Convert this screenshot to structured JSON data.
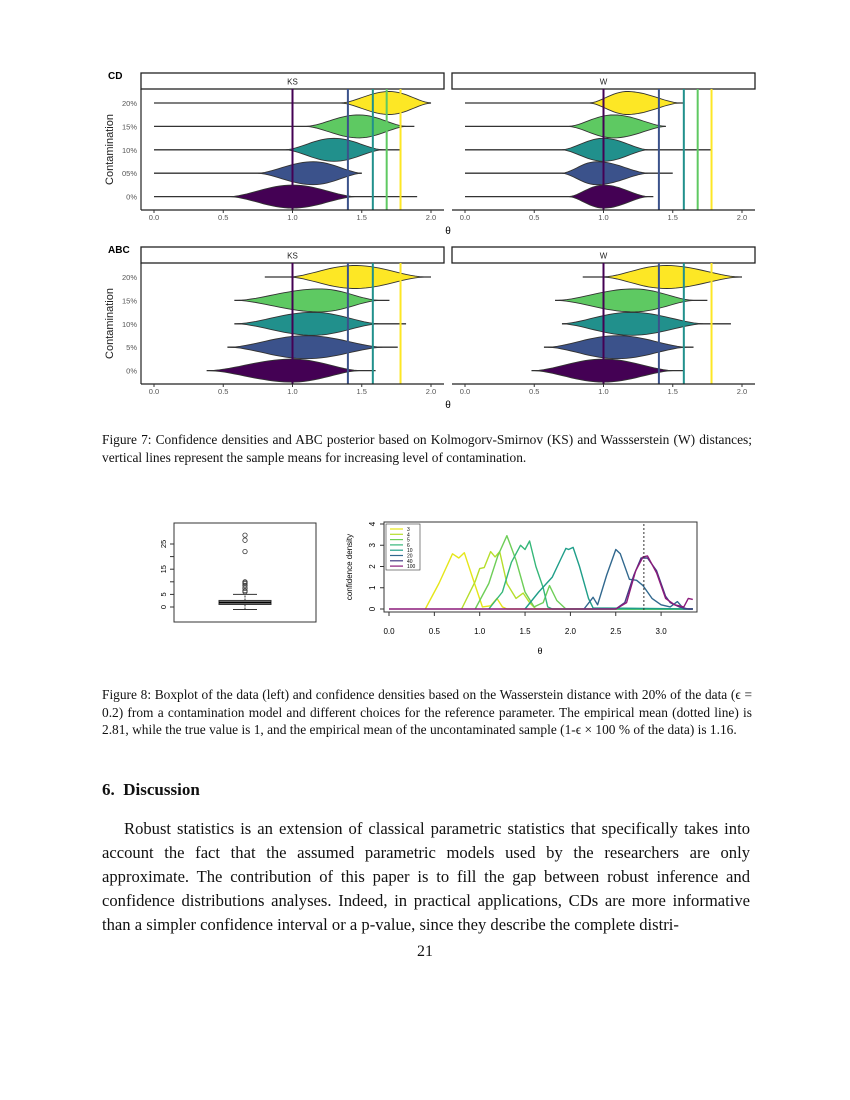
{
  "figure7": {
    "caption": "Figure 7: Confidence densities and ABC posterior based on Kolmogorv-Smirnov (KS) and Wassserstein (W) distances; vertical lines represent the sample means for increasing level of contamination."
  },
  "figure8": {
    "caption": "Figure 8: Boxplot of the data (left) and confidence densities based on the Wasserstein distance with 20% of the data (ϵ = 0.2) from a contamination model and different choices for the reference parameter. The empirical mean (dotted line) is 2.81, while the true value is 1, and the empirical mean of the uncontaminated sample (1-ϵ  × 100 % of the data) is 1.16."
  },
  "section": {
    "number": "6.",
    "title": "Discussion"
  },
  "body": "Robust statistics is an extension of classical parametric statistics that specifically takes into account the fact that the assumed parametric models used by the researchers are only approximate. The contribution of this paper is to fill the gap between robust inference and confidence distributions analyses. Indeed, in practical applications, CDs are more informative than a simpler confidence interval or a p-value, since they describe the complete distri-",
  "page_number": "21",
  "chart_data": [
    {
      "type": "violin",
      "xlabel": "θ",
      "ylabel": "Contamination",
      "xlim": [
        0,
        2.0
      ],
      "xticks": [
        "0.0",
        "0.5",
        "1.0",
        "1.5",
        "2.0"
      ],
      "colors": {
        "0%": "#440154",
        "5%": "#3b528b",
        "10%": "#21908c",
        "15%": "#5ec962",
        "20%": "#fde725"
      },
      "rows": [
        {
          "label": "CD",
          "categories": [
            "20%",
            "15%",
            "10%",
            "05%",
            "0%"
          ],
          "panels": [
            {
              "strip": "KS",
              "vlines": [
                1.0,
                1.4,
                1.58,
                1.68,
                1.78
              ],
              "violins": [
                {
                  "range": [
                    0,
                    2.0
                  ],
                  "body": [
                    1.35,
                    1.7,
                    2.0
                  ]
                },
                {
                  "range": [
                    0,
                    1.88
                  ],
                  "body": [
                    1.1,
                    1.48,
                    1.82
                  ]
                },
                {
                  "range": [
                    0,
                    1.78
                  ],
                  "body": [
                    0.95,
                    1.3,
                    1.65
                  ]
                },
                {
                  "range": [
                    0,
                    1.5
                  ],
                  "body": [
                    0.75,
                    1.15,
                    1.5
                  ]
                },
                {
                  "range": [
                    0,
                    1.9
                  ],
                  "body": [
                    0.55,
                    1.0,
                    1.45
                  ]
                }
              ]
            },
            {
              "strip": "W",
              "vlines": [
                1.0,
                1.4,
                1.58,
                1.68,
                1.78
              ],
              "violins": [
                {
                  "range": [
                    0,
                    1.58
                  ],
                  "body": [
                    0.9,
                    1.17,
                    1.55
                  ]
                },
                {
                  "range": [
                    0,
                    1.45
                  ],
                  "body": [
                    0.75,
                    1.07,
                    1.45
                  ]
                },
                {
                  "range": [
                    0,
                    1.78
                  ],
                  "body": [
                    0.7,
                    1.0,
                    1.32
                  ]
                },
                {
                  "range": [
                    0,
                    1.5
                  ],
                  "body": [
                    0.7,
                    0.95,
                    1.32
                  ]
                },
                {
                  "range": [
                    0,
                    1.36
                  ],
                  "body": [
                    0.75,
                    1.0,
                    1.32
                  ]
                }
              ]
            }
          ]
        },
        {
          "label": "ABC",
          "categories": [
            "20%",
            "15%",
            "10%",
            "5%",
            "0%"
          ],
          "panels": [
            {
              "strip": "KS",
              "vlines": [
                1.0,
                1.4,
                1.58,
                1.78
              ],
              "violins": [
                {
                  "range": [
                    0.8,
                    2.0
                  ],
                  "body": [
                    0.98,
                    1.45,
                    1.95
                  ]
                },
                {
                  "range": [
                    0.58,
                    1.7
                  ],
                  "body": [
                    0.6,
                    1.2,
                    1.62
                  ]
                },
                {
                  "range": [
                    0.58,
                    1.82
                  ],
                  "body": [
                    0.6,
                    1.15,
                    1.62
                  ]
                },
                {
                  "range": [
                    0.53,
                    1.76
                  ],
                  "body": [
                    0.55,
                    1.1,
                    1.65
                  ]
                },
                {
                  "range": [
                    0.38,
                    1.6
                  ],
                  "body": [
                    0.4,
                    1.0,
                    1.48
                  ]
                }
              ]
            },
            {
              "strip": "W",
              "vlines": [
                1.0,
                1.4,
                1.58,
                1.78
              ],
              "violins": [
                {
                  "range": [
                    0.85,
                    2.0
                  ],
                  "body": [
                    1.0,
                    1.45,
                    1.98
                  ]
                },
                {
                  "range": [
                    0.65,
                    1.75
                  ],
                  "body": [
                    0.67,
                    1.22,
                    1.65
                  ]
                },
                {
                  "range": [
                    0.7,
                    1.92
                  ],
                  "body": [
                    0.7,
                    1.2,
                    1.72
                  ]
                },
                {
                  "range": [
                    0.57,
                    1.65
                  ],
                  "body": [
                    0.6,
                    1.1,
                    1.6
                  ]
                },
                {
                  "range": [
                    0.48,
                    1.58
                  ],
                  "body": [
                    0.5,
                    1.0,
                    1.5
                  ]
                }
              ]
            }
          ]
        }
      ]
    },
    {
      "type": "boxplot",
      "yticks": [
        "0",
        "5",
        "15",
        "25"
      ],
      "box": {
        "q1": 1.0,
        "median": 1.8,
        "q3": 2.6,
        "whisker_low": -1.0,
        "whisker_high": 5.0
      },
      "outliers": [
        28.5,
        26.5,
        22,
        10,
        9.6,
        9.2,
        8.5,
        7.5,
        6.5,
        6
      ]
    },
    {
      "type": "line",
      "xlabel": "θ",
      "ylabel": "confidence density",
      "xlim": [
        0,
        3.35
      ],
      "ylim": [
        0,
        4
      ],
      "xticks": [
        "0.0",
        "0.5",
        "1.0",
        "1.5",
        "2.0",
        "2.5",
        "3.0"
      ],
      "yticks": [
        "0",
        "1",
        "2",
        "3",
        "4"
      ],
      "legend": "top-left",
      "reference_line": 2.81,
      "series": [
        {
          "name": "3",
          "color": "#e5e619",
          "points": [
            [
              0.4,
              0
            ],
            [
              0.55,
              1.2
            ],
            [
              0.7,
              2.6
            ],
            [
              0.77,
              2.4
            ],
            [
              0.83,
              2.65
            ],
            [
              0.92,
              1.5
            ],
            [
              1.03,
              0.1
            ],
            [
              1.12,
              0.15
            ],
            [
              1.19,
              0.5
            ],
            [
              1.25,
              0.1
            ],
            [
              1.3,
              0
            ],
            [
              3.35,
              0
            ]
          ]
        },
        {
          "name": "4",
          "color": "#b5de2b",
          "points": [
            [
              0.8,
              0
            ],
            [
              0.95,
              1.3
            ],
            [
              1.0,
              1.9
            ],
            [
              1.05,
              1.95
            ],
            [
              1.12,
              2.7
            ],
            [
              1.17,
              2.45
            ],
            [
              1.22,
              2.7
            ],
            [
              1.3,
              1.2
            ],
            [
              1.4,
              0.5
            ],
            [
              1.48,
              0.75
            ],
            [
              1.55,
              0.3
            ],
            [
              1.62,
              0
            ],
            [
              3.35,
              0
            ]
          ]
        },
        {
          "name": "5",
          "color": "#6ece58",
          "points": [
            [
              0.95,
              0
            ],
            [
              1.1,
              1.2
            ],
            [
              1.2,
              2.5
            ],
            [
              1.3,
              3.45
            ],
            [
              1.4,
              2.3
            ],
            [
              1.5,
              0.8
            ],
            [
              1.6,
              0.1
            ],
            [
              1.7,
              0.3
            ],
            [
              1.77,
              1.1
            ],
            [
              1.85,
              0.4
            ],
            [
              1.95,
              0
            ],
            [
              3.35,
              0
            ]
          ]
        },
        {
          "name": "6",
          "color": "#35b779",
          "points": [
            [
              1.1,
              0
            ],
            [
              1.25,
              0.8
            ],
            [
              1.35,
              2.2
            ],
            [
              1.45,
              3.0
            ],
            [
              1.5,
              2.8
            ],
            [
              1.55,
              3.2
            ],
            [
              1.62,
              2.0
            ],
            [
              1.7,
              1.0
            ],
            [
              1.75,
              0.1
            ],
            [
              1.8,
              0
            ],
            [
              3.35,
              0
            ]
          ]
        },
        {
          "name": "10",
          "color": "#1f9e89",
          "points": [
            [
              1.5,
              0
            ],
            [
              1.65,
              0.8
            ],
            [
              1.8,
              1.5
            ],
            [
              1.9,
              2.4
            ],
            [
              1.95,
              2.85
            ],
            [
              1.98,
              2.8
            ],
            [
              2.03,
              2.9
            ],
            [
              2.1,
              2.0
            ],
            [
              2.2,
              0.5
            ],
            [
              2.25,
              0.05
            ],
            [
              3.35,
              0
            ]
          ]
        },
        {
          "name": "20",
          "color": "#31688e",
          "points": [
            [
              2.15,
              0
            ],
            [
              2.25,
              0.55
            ],
            [
              2.3,
              0.2
            ],
            [
              2.4,
              1.6
            ],
            [
              2.5,
              2.8
            ],
            [
              2.55,
              2.6
            ],
            [
              2.65,
              1.4
            ],
            [
              2.73,
              1.35
            ],
            [
              2.8,
              1.1
            ],
            [
              2.9,
              0.5
            ],
            [
              3.0,
              0.2
            ],
            [
              3.1,
              0.1
            ],
            [
              3.18,
              0.35
            ],
            [
              3.25,
              0
            ],
            [
              3.35,
              0
            ]
          ]
        },
        {
          "name": "40",
          "color": "#443a83",
          "points": [
            [
              2.5,
              0
            ],
            [
              2.6,
              0.3
            ],
            [
              2.7,
              1.6
            ],
            [
              2.78,
              2.4
            ],
            [
              2.85,
              2.4
            ],
            [
              2.95,
              1.8
            ],
            [
              3.05,
              0.6
            ],
            [
              3.1,
              0.3
            ],
            [
              3.2,
              0.1
            ],
            [
              3.3,
              0
            ],
            [
              3.35,
              0
            ]
          ]
        },
        {
          "name": "100",
          "color": "#8b1a7a",
          "points": [
            [
              0,
              0
            ],
            [
              2.5,
              0
            ],
            [
              2.62,
              0.3
            ],
            [
              2.72,
              1.8
            ],
            [
              2.8,
              2.45
            ],
            [
              2.85,
              2.5
            ],
            [
              2.95,
              1.7
            ],
            [
              3.05,
              0.5
            ],
            [
              3.15,
              0.2
            ],
            [
              3.25,
              0.1
            ],
            [
              3.3,
              0.5
            ],
            [
              3.35,
              0.45
            ]
          ]
        }
      ]
    }
  ]
}
